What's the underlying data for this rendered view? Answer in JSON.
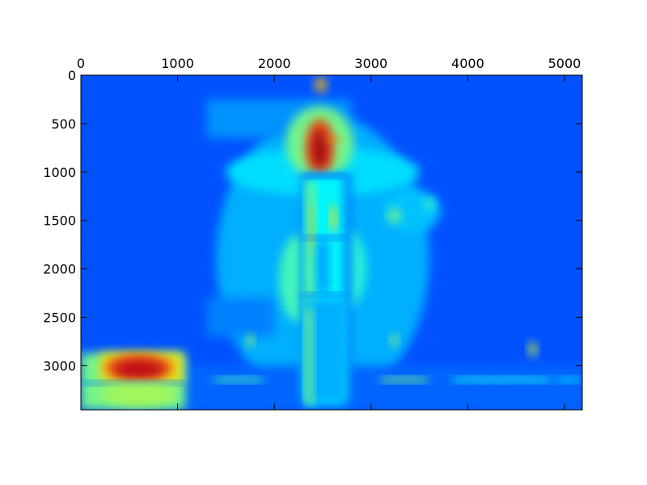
{
  "chart_data": {
    "type": "heatmap",
    "title": "",
    "xlabel": "",
    "ylabel": "",
    "colormap": "jet",
    "colormap_stops": [
      "#00007f",
      "#0000ff",
      "#007fff",
      "#00ffff",
      "#7fff7f",
      "#ffff00",
      "#ff7f00",
      "#ff0000",
      "#7f0000"
    ],
    "x_axis_position": "top",
    "xlim": [
      0,
      5184
    ],
    "ylim": [
      3456,
      0
    ],
    "y_inverted": true,
    "grid": false,
    "x_ticks": [
      {
        "value": 0,
        "label": "0"
      },
      {
        "value": 1000,
        "label": "1000"
      },
      {
        "value": 2000,
        "label": "2000"
      },
      {
        "value": 3000,
        "label": "3000"
      },
      {
        "value": 4000,
        "label": "4000"
      },
      {
        "value": 5000,
        "label": "5000"
      }
    ],
    "y_ticks": [
      {
        "value": 0,
        "label": "0"
      },
      {
        "value": 500,
        "label": "500"
      },
      {
        "value": 1000,
        "label": "1000"
      },
      {
        "value": 1500,
        "label": "1500"
      },
      {
        "value": 2000,
        "label": "2000"
      },
      {
        "value": 2500,
        "label": "2500"
      },
      {
        "value": 3000,
        "label": "3000"
      }
    ],
    "background_level": 0.2,
    "features": [
      {
        "kind": "rect",
        "x": [
          0,
          5184
        ],
        "y": [
          0,
          3456
        ],
        "level": 0.2
      },
      {
        "kind": "glow",
        "cx": 2500,
        "cy": 1900,
        "rx": 1100,
        "ry": 1500,
        "level": 0.3
      },
      {
        "kind": "glow",
        "cx": 2500,
        "cy": 1000,
        "rx": 1000,
        "ry": 250,
        "level": 0.35
      },
      {
        "kind": "rect",
        "x": [
          1300,
          2800
        ],
        "y": [
          250,
          650
        ],
        "level": 0.27
      },
      {
        "kind": "rect",
        "x": [
          1300,
          2000
        ],
        "y": [
          2300,
          2700
        ],
        "level": 0.25
      },
      {
        "kind": "rect",
        "x": [
          0,
          5184
        ],
        "y": [
          3000,
          3456
        ],
        "level": 0.22
      },
      {
        "kind": "glow",
        "cx": 2470,
        "cy": 700,
        "rx": 350,
        "ry": 380,
        "level": 0.5
      },
      {
        "kind": "glow",
        "cx": 2470,
        "cy": 750,
        "rx": 150,
        "ry": 300,
        "level": 0.8
      },
      {
        "kind": "glow",
        "cx": 2470,
        "cy": 760,
        "rx": 80,
        "ry": 200,
        "level": 0.95
      },
      {
        "kind": "glow",
        "cx": 2480,
        "cy": 100,
        "rx": 60,
        "ry": 80,
        "level": 0.7
      },
      {
        "kind": "glow",
        "cx": 2600,
        "cy": 660,
        "rx": 80,
        "ry": 30,
        "level": 0.75
      },
      {
        "kind": "glow",
        "cx": 2250,
        "cy": 2100,
        "rx": 200,
        "ry": 450,
        "level": 0.45
      },
      {
        "kind": "glow",
        "cx": 2750,
        "cy": 2000,
        "rx": 200,
        "ry": 400,
        "level": 0.42
      },
      {
        "kind": "rect",
        "x": [
          2280,
          2800
        ],
        "y": [
          1020,
          3380
        ],
        "level": 0.25
      },
      {
        "kind": "rect",
        "x": [
          2320,
          2720
        ],
        "y": [
          1030,
          3380
        ],
        "level": 0.38
      },
      {
        "kind": "rect",
        "x": [
          2330,
          2420
        ],
        "y": [
          1100,
          3380
        ],
        "level": 0.5
      },
      {
        "kind": "rect",
        "x": [
          2580,
          2640
        ],
        "y": [
          1350,
          1600
        ],
        "level": 0.65
      },
      {
        "kind": "rect",
        "x": [
          2290,
          2730
        ],
        "y": [
          1020,
          1060
        ],
        "level": 0.2
      },
      {
        "kind": "rect",
        "x": [
          2290,
          2730
        ],
        "y": [
          1660,
          1700
        ],
        "level": 0.22
      },
      {
        "kind": "rect",
        "x": [
          2290,
          2730
        ],
        "y": [
          2250,
          2290
        ],
        "level": 0.22
      },
      {
        "kind": "rect",
        "x": [
          2440,
          2560
        ],
        "y": [
          1700,
          2250
        ],
        "level": 0.28
      },
      {
        "kind": "rect",
        "x": [
          2370,
          2400
        ],
        "y": [
          1350,
          1800
        ],
        "level": 0.7
      },
      {
        "kind": "glow",
        "cx": 3420,
        "cy": 1400,
        "rx": 300,
        "ry": 220,
        "level": 0.32
      },
      {
        "kind": "glow",
        "cx": 3240,
        "cy": 1450,
        "rx": 60,
        "ry": 80,
        "level": 0.5
      },
      {
        "kind": "glow",
        "cx": 3600,
        "cy": 1330,
        "rx": 50,
        "ry": 60,
        "level": 0.45
      },
      {
        "kind": "rect",
        "x": [
          0,
          1080
        ],
        "y": [
          2870,
          3456
        ],
        "level": 0.5
      },
      {
        "kind": "rect",
        "x": [
          200,
          1050
        ],
        "y": [
          2870,
          3180
        ],
        "level": 0.65
      },
      {
        "kind": "glow",
        "cx": 600,
        "cy": 3020,
        "rx": 350,
        "ry": 140,
        "level": 0.8
      },
      {
        "kind": "glow",
        "cx": 600,
        "cy": 3040,
        "rx": 250,
        "ry": 90,
        "level": 0.92
      },
      {
        "kind": "rect",
        "x": [
          0,
          1080
        ],
        "y": [
          3160,
          3200
        ],
        "level": 0.25
      },
      {
        "kind": "glow",
        "cx": 600,
        "cy": 3300,
        "rx": 400,
        "ry": 120,
        "level": 0.55
      },
      {
        "kind": "rect",
        "x": [
          1380,
          1880
        ],
        "y": [
          3120,
          3170
        ],
        "level": 0.45
      },
      {
        "kind": "rect",
        "x": [
          3100,
          3580
        ],
        "y": [
          3120,
          3170
        ],
        "level": 0.5
      },
      {
        "kind": "rect",
        "x": [
          3850,
          4850
        ],
        "y": [
          3120,
          3170
        ],
        "level": 0.4
      },
      {
        "kind": "rect",
        "x": [
          4920,
          5184
        ],
        "y": [
          3120,
          3170
        ],
        "level": 0.35
      },
      {
        "kind": "glow",
        "cx": 1750,
        "cy": 2740,
        "rx": 35,
        "ry": 60,
        "level": 0.55
      },
      {
        "kind": "glow",
        "cx": 3240,
        "cy": 2740,
        "rx": 35,
        "ry": 60,
        "level": 0.55
      },
      {
        "kind": "glow",
        "cx": 4670,
        "cy": 2830,
        "rx": 40,
        "ry": 70,
        "level": 0.6
      },
      {
        "kind": "rect",
        "x": [
          2300,
          2740
        ],
        "y": [
          2300,
          3380
        ],
        "level": 0.3
      },
      {
        "kind": "rect",
        "x": [
          2330,
          2400
        ],
        "y": [
          2400,
          3380
        ],
        "level": 0.5
      }
    ]
  }
}
